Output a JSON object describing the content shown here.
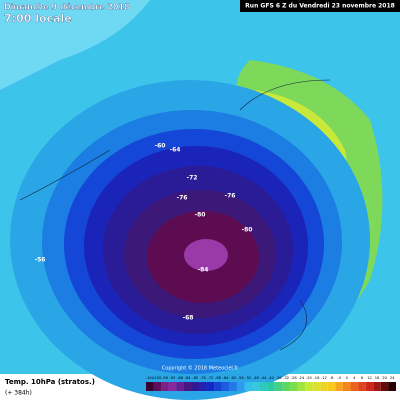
{
  "header": {
    "date": "Dimanche 9 décembre 2018",
    "time": "7:00 locale",
    "run": "Run GFS 6 Z du Vendredi 23 novembre 2018"
  },
  "footer": {
    "field": "Temp. 10hPa (stratos.)",
    "lead": "(+ 384h)",
    "copyright": "Copyright © 2018 Meteociel.fr"
  },
  "legend": {
    "labels": [
      -104,
      -100,
      -96,
      -92,
      -88,
      -84,
      -80,
      -76,
      -72,
      -68,
      -64,
      -60,
      -56,
      -52,
      -48,
      -44,
      -40,
      -36,
      -32,
      -28,
      -24,
      -20,
      -16,
      -12,
      -8,
      -4,
      0,
      4,
      8,
      12,
      16,
      20,
      24
    ]
  },
  "map": {
    "contour_labels": [
      -84,
      -80,
      -80,
      -76,
      -76,
      -72,
      -68,
      -64,
      -60,
      -56
    ]
  }
}
